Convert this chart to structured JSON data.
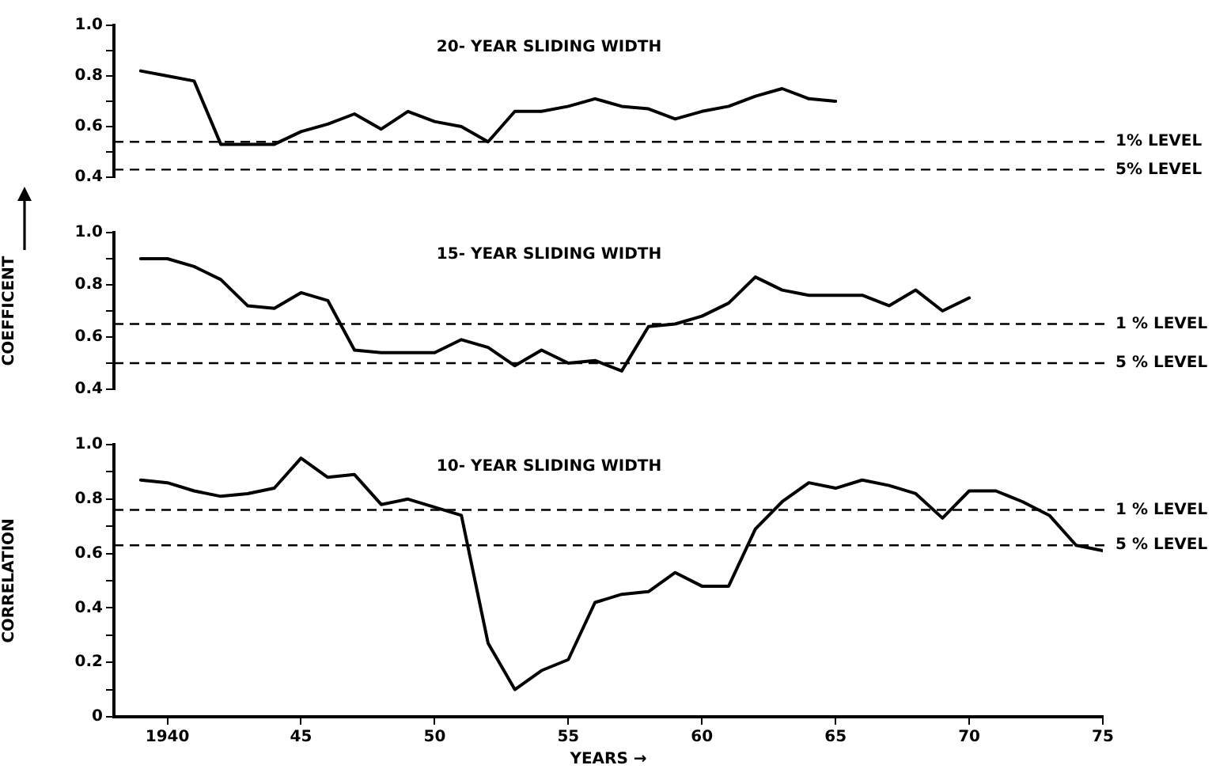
{
  "chart_data": [
    {
      "type": "line",
      "title": "20- YEAR SLIDING WIDTH",
      "x": [
        1939,
        1940,
        1941,
        1942,
        1943,
        1944,
        1945,
        1946,
        1947,
        1948,
        1949,
        1950,
        1951,
        1952,
        1953,
        1954,
        1955,
        1956,
        1957,
        1958,
        1959,
        1960,
        1961,
        1962,
        1963,
        1964,
        1965
      ],
      "series": [
        {
          "color": "#000000",
          "values": [
            0.82,
            0.8,
            0.78,
            0.53,
            0.53,
            0.53,
            0.58,
            0.61,
            0.65,
            0.59,
            0.66,
            0.62,
            0.6,
            0.54,
            0.66,
            0.66,
            0.68,
            0.71,
            0.68,
            0.67,
            0.63,
            0.66,
            0.68,
            0.72,
            0.75,
            0.71,
            0.7
          ]
        }
      ],
      "xlim": [
        1938,
        1975
      ],
      "ylim": [
        0.4,
        1.0
      ],
      "yticks": [
        0.4,
        {
          "value": 0.5,
          "label": null
        },
        0.6,
        {
          "value": 0.7,
          "label": null
        },
        0.8,
        {
          "value": 0.9,
          "label": null
        },
        {
          "value": 1.0,
          "label": "1.0"
        }
      ],
      "tick_labels": "y",
      "ref_lines": [
        {
          "axis": "y",
          "value": 0.54,
          "label": "1% LEVEL",
          "line_style": "dashed"
        },
        {
          "axis": "y",
          "value": 0.43,
          "label": "5% LEVEL",
          "line_style": "dashed"
        }
      ]
    },
    {
      "type": "line",
      "title": "15- YEAR SLIDING WIDTH",
      "ylabel": "COEFFICENT",
      "x": [
        1939,
        1940,
        1941,
        1942,
        1943,
        1944,
        1945,
        1946,
        1947,
        1948,
        1949,
        1950,
        1951,
        1952,
        1953,
        1954,
        1955,
        1956,
        1957,
        1958,
        1959,
        1960,
        1961,
        1962,
        1963,
        1964,
        1965,
        1966,
        1967,
        1968,
        1969,
        1970
      ],
      "series": [
        {
          "color": "#000000",
          "values": [
            0.9,
            0.9,
            0.87,
            0.82,
            0.72,
            0.71,
            0.77,
            0.74,
            0.55,
            0.54,
            0.54,
            0.54,
            0.59,
            0.56,
            0.49,
            0.55,
            0.5,
            0.51,
            0.47,
            0.64,
            0.65,
            0.68,
            0.73,
            0.83,
            0.78,
            0.76,
            0.76,
            0.76,
            0.72,
            0.78,
            0.7,
            0.75
          ]
        }
      ],
      "xlim": [
        1938,
        1975
      ],
      "ylim": [
        0.4,
        1.0
      ],
      "yticks": [
        0.4,
        {
          "value": 0.5,
          "label": null
        },
        0.6,
        {
          "value": 0.7,
          "label": null
        },
        0.8,
        {
          "value": 0.9,
          "label": null
        },
        {
          "value": 1.0,
          "label": "1.0"
        }
      ],
      "tick_labels": "y",
      "ref_lines": [
        {
          "axis": "y",
          "value": 0.65,
          "label": "1 % LEVEL",
          "line_style": "dashed"
        },
        {
          "axis": "y",
          "value": 0.5,
          "label": "5 % LEVEL",
          "line_style": "dashed"
        }
      ]
    },
    {
      "type": "line",
      "title": "10- YEAR SLIDING WIDTH",
      "ylabel": "CORRELATION",
      "xlabel": "YEARS →",
      "x": [
        1939,
        1940,
        1941,
        1942,
        1943,
        1944,
        1945,
        1946,
        1947,
        1948,
        1949,
        1950,
        1951,
        1952,
        1953,
        1954,
        1955,
        1956,
        1957,
        1958,
        1959,
        1960,
        1961,
        1962,
        1963,
        1964,
        1965,
        1966,
        1967,
        1968,
        1969,
        1970,
        1971,
        1972,
        1973,
        1974,
        1975
      ],
      "series": [
        {
          "color": "#000000",
          "values": [
            0.87,
            0.86,
            0.83,
            0.81,
            0.82,
            0.84,
            0.95,
            0.88,
            0.89,
            0.78,
            0.8,
            0.77,
            0.74,
            0.27,
            0.1,
            0.17,
            0.21,
            0.42,
            0.45,
            0.46,
            0.53,
            0.48,
            0.48,
            0.69,
            0.79,
            0.86,
            0.84,
            0.87,
            0.85,
            0.82,
            0.73,
            0.83,
            0.83,
            0.79,
            0.74,
            0.63,
            0.61
          ]
        }
      ],
      "xlim": [
        1938,
        1975
      ],
      "ylim": [
        0,
        1.0
      ],
      "xticks": [
        1940,
        {
          "value": 1945,
          "label": "45"
        },
        {
          "value": 1950,
          "label": "50"
        },
        {
          "value": 1955,
          "label": "55"
        },
        {
          "value": 1960,
          "label": "60"
        },
        {
          "value": 1965,
          "label": "65"
        },
        {
          "value": 1970,
          "label": "70"
        },
        {
          "value": 1975,
          "label": "75"
        }
      ],
      "yticks": [
        0,
        {
          "value": 0.1,
          "label": null
        },
        0.2,
        {
          "value": 0.3,
          "label": null
        },
        0.4,
        {
          "value": 0.5,
          "label": null
        },
        0.6,
        {
          "value": 0.7,
          "label": null
        },
        0.8,
        {
          "value": 0.9,
          "label": null
        },
        {
          "value": 1.0,
          "label": "1.0"
        }
      ],
      "ref_lines": [
        {
          "axis": "y",
          "value": 0.76,
          "label": "1 % LEVEL",
          "line_style": "dashed"
        },
        {
          "axis": "y",
          "value": 0.63,
          "label": "5 % LEVEL",
          "line_style": "dashed"
        }
      ]
    }
  ]
}
